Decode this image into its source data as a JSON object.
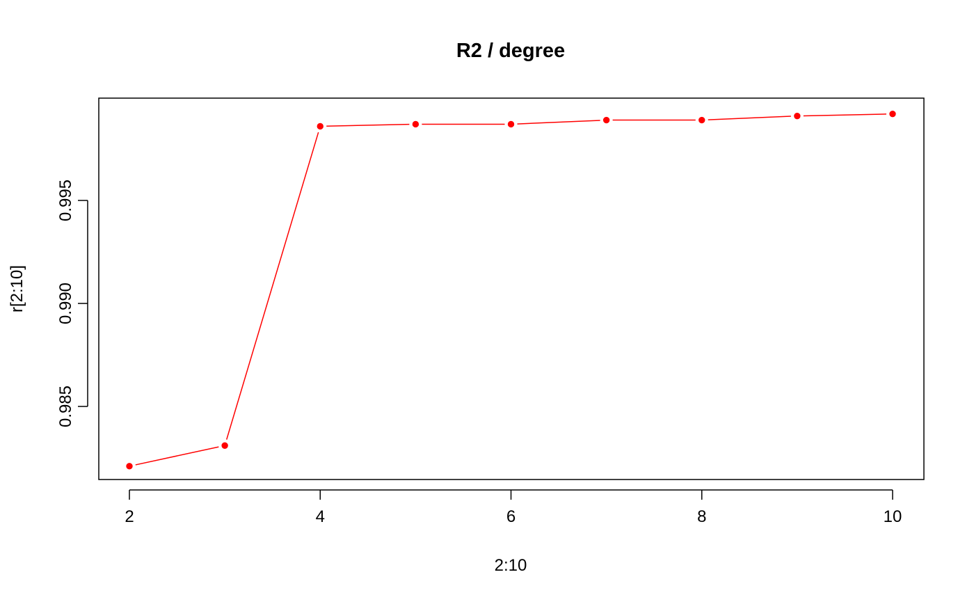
{
  "chart_data": {
    "type": "line",
    "title": "R2 / degree",
    "xlabel": "2:10",
    "ylabel": "r[2:10]",
    "x": [
      2,
      3,
      4,
      5,
      6,
      7,
      8,
      9,
      10
    ],
    "series": [
      {
        "values": [
          0.9821,
          0.9831,
          0.9986,
          0.9987,
          0.9987,
          0.9989,
          0.9989,
          0.9991,
          0.9992
        ],
        "color": "#ff0000"
      }
    ],
    "xlim": [
      2,
      10
    ],
    "ylim": [
      0.98,
      1.0
    ],
    "x_ticks": [
      "2",
      "4",
      "6",
      "8",
      "10"
    ],
    "y_ticks": [
      "0.985",
      "0.990",
      "0.995"
    ],
    "grid": false,
    "legend": "none",
    "marker": "filled-circle"
  }
}
